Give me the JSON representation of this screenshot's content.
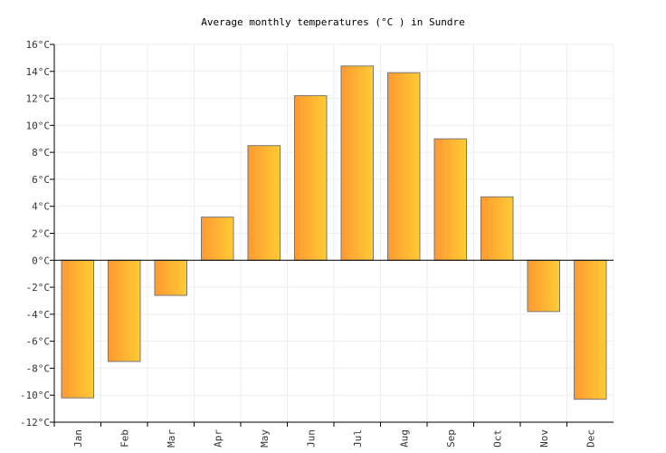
{
  "chart_data": {
    "type": "bar",
    "title": "Average monthly temperatures (°C ) in Sundre",
    "xlabel": "",
    "ylabel": "",
    "categories": [
      "Jan",
      "Feb",
      "Mar",
      "Apr",
      "May",
      "Jun",
      "Jul",
      "Aug",
      "Sep",
      "Oct",
      "Nov",
      "Dec"
    ],
    "values": [
      -10.2,
      -7.5,
      -2.6,
      3.2,
      8.5,
      12.2,
      14.4,
      13.9,
      9.0,
      4.7,
      -3.8,
      -10.3
    ],
    "ylim": [
      -12,
      16
    ],
    "yticks": [
      -12,
      -10,
      -8,
      -6,
      -4,
      -2,
      0,
      2,
      4,
      6,
      8,
      10,
      12,
      14,
      16
    ],
    "ytick_suffix": "°C",
    "grid": true,
    "legend": "none",
    "colors": {
      "bar_left": "#ff9933",
      "bar_right": "#ffcc33",
      "bar_border": "#777777",
      "grid": "#eeeeee"
    }
  }
}
